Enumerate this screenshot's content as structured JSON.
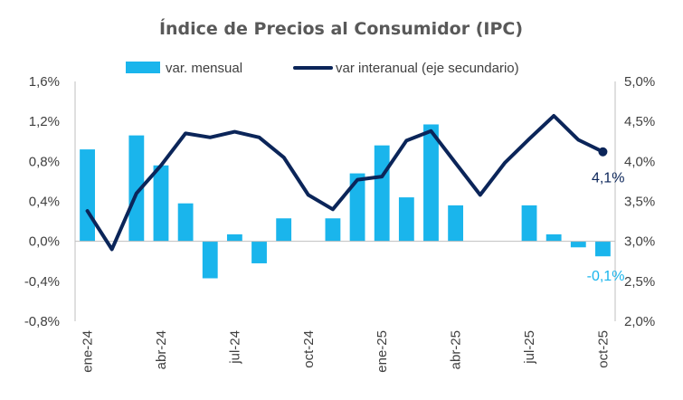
{
  "chart_data": {
    "type": "bar+line",
    "title": "Índice de Precios al Consumidor (IPC)",
    "periods": [
      "ene-24",
      "feb-24",
      "mar-24",
      "abr-24",
      "may-24",
      "jun-24",
      "jul-24",
      "ago-24",
      "sep-24",
      "oct-24",
      "nov-24",
      "dic-24",
      "ene-25",
      "feb-25",
      "mar-25",
      "abr-25",
      "may-25",
      "jun-25",
      "jul-25",
      "ago-25",
      "sep-25",
      "oct-25"
    ],
    "x_tick_labels": [
      "ene-24",
      "abr-24",
      "jul-24",
      "oct-24",
      "ene-25",
      "abr-25",
      "jul-25",
      "oct-25"
    ],
    "series": [
      {
        "name": "var. mensual",
        "kind": "bar",
        "axis": "primary",
        "color": "#1ab5ec",
        "values": [
          0.92,
          null,
          1.06,
          0.76,
          0.38,
          -0.37,
          0.07,
          -0.22,
          0.23,
          null,
          0.23,
          0.68,
          0.96,
          0.44,
          1.17,
          0.36,
          null,
          null,
          0.36,
          0.07,
          -0.06,
          -0.15
        ]
      },
      {
        "name": "var interanual (eje secundario)",
        "kind": "line",
        "axis": "secondary",
        "color": "#0b2559",
        "values": [
          3.38,
          2.9,
          3.6,
          3.95,
          4.35,
          4.3,
          4.37,
          4.3,
          4.05,
          3.58,
          3.4,
          3.77,
          3.81,
          4.26,
          4.38,
          3.98,
          3.58,
          3.98,
          4.28,
          4.57,
          4.27,
          4.12
        ]
      }
    ],
    "y_primary": {
      "min": -0.8,
      "max": 1.6,
      "step": 0.4,
      "tick_labels": [
        "1,6%",
        "1,2%",
        "0,8%",
        "0,4%",
        "0,0%",
        "-0,4%",
        "-0,8%"
      ]
    },
    "y_secondary": {
      "min": 2.0,
      "max": 5.0,
      "step": 0.5,
      "tick_labels": [
        "5,0%",
        "4,5%",
        "4,0%",
        "3,5%",
        "3,0%",
        "2,5%",
        "2,0%"
      ]
    },
    "annotations": {
      "last_line_label": "4,1%",
      "last_bar_label": "-0,1%"
    },
    "legend_position": "top",
    "grid": false
  }
}
